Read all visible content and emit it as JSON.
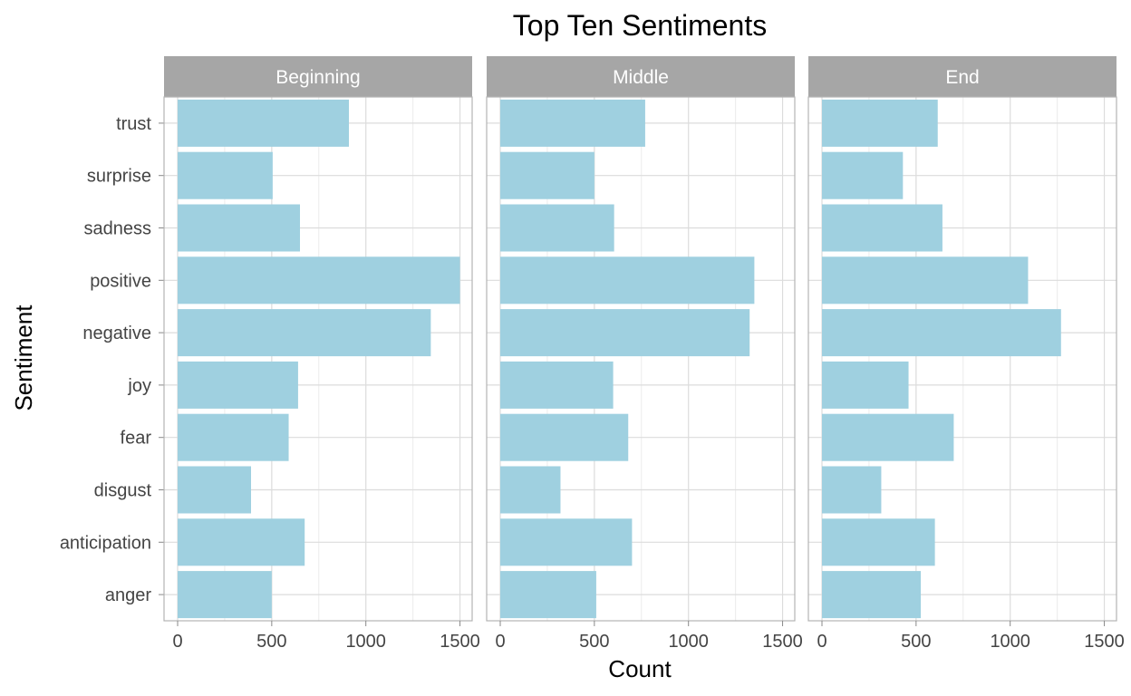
{
  "chart_data": {
    "type": "bar",
    "orientation": "horizontal",
    "title": "Top Ten Sentiments",
    "xlabel": "Count",
    "ylabel": "Sentiment",
    "xlim": [
      0,
      1500
    ],
    "x_ticks": [
      0,
      500,
      1000,
      1500
    ],
    "grid": true,
    "bar_color": "#9fd0e0",
    "strip_color": "#a6a6a6",
    "categories": [
      "anger",
      "anticipation",
      "disgust",
      "fear",
      "joy",
      "negative",
      "positive",
      "sadness",
      "surprise",
      "trust"
    ],
    "facets": [
      {
        "name": "Beginning",
        "values": [
          500,
          675,
          390,
          590,
          640,
          1345,
          1500,
          650,
          505,
          910
        ]
      },
      {
        "name": "Middle",
        "values": [
          510,
          700,
          320,
          680,
          600,
          1325,
          1350,
          605,
          500,
          770
        ]
      },
      {
        "name": "End",
        "values": [
          525,
          600,
          315,
          700,
          460,
          1270,
          1095,
          640,
          430,
          615
        ]
      }
    ]
  }
}
